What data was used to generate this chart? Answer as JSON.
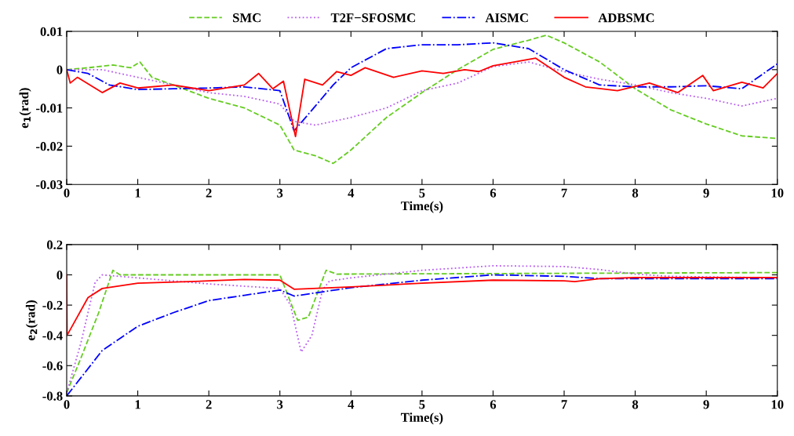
{
  "chart_data": [
    {
      "type": "line",
      "xlabel": "Time(s)",
      "ylabel": "e$_{1}$(rad)",
      "xlim": [
        0,
        10
      ],
      "ylim": [
        -0.03,
        0.01
      ],
      "xticks": [
        0,
        1,
        2,
        3,
        4,
        5,
        6,
        7,
        8,
        9,
        10
      ],
      "yticks": [
        -0.03,
        -0.02,
        -0.01,
        0,
        0.01
      ],
      "grid": false,
      "legend": "top",
      "marker": "none",
      "series": [
        {
          "name": "SMC",
          "color": "#66cc22",
          "line_style": "dashed",
          "x": [
            0,
            0.3,
            0.65,
            0.9,
            1.03,
            1.2,
            1.5,
            2,
            2.5,
            3,
            3.2,
            3.5,
            3.75,
            4,
            4.5,
            5,
            5.5,
            6,
            6.5,
            6.75,
            7,
            7.5,
            8,
            8.5,
            9,
            9.5,
            10
          ],
          "values": [
            0,
            0.0005,
            0.0012,
            0.0005,
            0.002,
            -0.002,
            -0.004,
            -0.0075,
            -0.01,
            -0.0145,
            -0.021,
            -0.0225,
            -0.0245,
            -0.021,
            -0.0125,
            -0.006,
            0,
            0.0053,
            0.0077,
            0.009,
            0.007,
            0.002,
            -0.005,
            -0.0105,
            -0.0142,
            -0.0173,
            -0.018
          ]
        },
        {
          "name": "T2F−SFOSMC",
          "color": "#b85cf0",
          "line_style": "dotted",
          "x": [
            0,
            0.5,
            1,
            1.5,
            2,
            2.5,
            3,
            3.2,
            3.5,
            4,
            4.5,
            5,
            5.5,
            6,
            6.5,
            7,
            7.5,
            8,
            8.5,
            9,
            9.5,
            10
          ],
          "values": [
            0,
            0,
            -0.002,
            -0.004,
            -0.006,
            -0.007,
            -0.009,
            -0.0135,
            -0.0145,
            -0.0125,
            -0.01,
            -0.0055,
            -0.0035,
            0.0008,
            0.002,
            -0.0005,
            -0.0025,
            -0.004,
            -0.006,
            -0.0075,
            -0.0095,
            -0.0075
          ]
        },
        {
          "name": "AISMC",
          "color": "#0000ff",
          "line_style": "dashdot",
          "x": [
            0,
            0.3,
            0.6,
            1,
            1.5,
            2,
            2.5,
            3,
            3.2,
            3.5,
            3.75,
            4,
            4.5,
            5,
            5.5,
            6,
            6.5,
            7,
            7.5,
            8,
            8.5,
            9,
            9.5,
            10
          ],
          "values": [
            0,
            -0.001,
            -0.004,
            -0.0052,
            -0.005,
            -0.0048,
            -0.0045,
            -0.0055,
            -0.016,
            -0.0095,
            -0.004,
            0.0005,
            0.0055,
            0.0065,
            0.0065,
            0.007,
            0.0055,
            0,
            -0.004,
            -0.0045,
            -0.0045,
            -0.0042,
            -0.005,
            0.0015
          ]
        },
        {
          "name": "ADBSMC",
          "color": "#ff0000",
          "line_style": "solid",
          "x": [
            0,
            0.05,
            0.15,
            0.5,
            0.75,
            1,
            1.5,
            2,
            2.5,
            2.7,
            2.9,
            3.05,
            3.22,
            3.35,
            3.6,
            3.8,
            4,
            4.2,
            4.6,
            5,
            5.3,
            5.6,
            5.8,
            6,
            6.6,
            7,
            7.3,
            7.75,
            8.2,
            8.6,
            8.95,
            9.1,
            9.5,
            9.8,
            10
          ],
          "values": [
            0,
            -0.0035,
            -0.002,
            -0.006,
            -0.0035,
            -0.0048,
            -0.004,
            -0.0055,
            -0.004,
            -0.001,
            -0.005,
            -0.003,
            -0.0175,
            -0.0025,
            -0.004,
            -0.0005,
            -0.0015,
            0.0005,
            -0.002,
            -0.0003,
            -0.001,
            0,
            -0.0005,
            0.001,
            0.003,
            -0.002,
            -0.0045,
            -0.0055,
            -0.0035,
            -0.006,
            -0.0015,
            -0.0055,
            -0.0033,
            -0.0048,
            -0.001
          ]
        }
      ]
    },
    {
      "type": "line",
      "xlabel": "Time(s)",
      "ylabel": "e$_{2}$(rad)",
      "xlim": [
        0,
        10
      ],
      "ylim": [
        -0.8,
        0.2
      ],
      "xticks": [
        0,
        1,
        2,
        3,
        4,
        5,
        6,
        7,
        8,
        9,
        10
      ],
      "yticks": [
        -0.8,
        -0.6,
        -0.4,
        -0.2,
        0,
        0.2
      ],
      "grid": false,
      "legend": false,
      "marker": "none",
      "series": [
        {
          "color": "#66cc22",
          "line_style": "dashed",
          "x": [
            0,
            0.2,
            0.45,
            0.65,
            0.75,
            3,
            3.25,
            3.4,
            3.65,
            3.8,
            10
          ],
          "values": [
            -0.78,
            -0.55,
            -0.25,
            0.03,
            0,
            0,
            -0.3,
            -0.28,
            0.03,
            0.005,
            0.015
          ]
        },
        {
          "color": "#b85cf0",
          "line_style": "dotted",
          "x": [
            0,
            0.2,
            0.4,
            0.5,
            1,
            2,
            3,
            3.15,
            3.3,
            3.45,
            3.6,
            3.7,
            4,
            5,
            6,
            7,
            7.5,
            8,
            8.5,
            10
          ],
          "values": [
            -0.78,
            -0.45,
            -0.05,
            0,
            -0.02,
            -0.06,
            -0.09,
            -0.2,
            -0.51,
            -0.4,
            -0.1,
            -0.04,
            -0.02,
            0.03,
            0.06,
            0.055,
            0.035,
            0.005,
            -0.01,
            -0.02
          ]
        },
        {
          "color": "#0000ff",
          "line_style": "dashdot",
          "x": [
            0,
            0.5,
            1,
            1.5,
            2,
            2.5,
            3,
            3.2,
            4,
            5,
            6,
            7,
            7.5,
            8,
            10
          ],
          "values": [
            -0.8,
            -0.5,
            -0.34,
            -0.25,
            -0.17,
            -0.135,
            -0.1,
            -0.14,
            -0.085,
            -0.035,
            0,
            -0.01,
            -0.025,
            -0.025,
            -0.025
          ]
        },
        {
          "color": "#ff0000",
          "line_style": "solid",
          "x": [
            0,
            0.005,
            0.3,
            0.5,
            1,
            2,
            2.5,
            3,
            3.2,
            4,
            5,
            6,
            7,
            7.15,
            7.5,
            8,
            10
          ],
          "values": [
            0,
            -0.4,
            -0.15,
            -0.09,
            -0.055,
            -0.04,
            -0.03,
            -0.035,
            -0.095,
            -0.08,
            -0.055,
            -0.035,
            -0.04,
            -0.045,
            -0.025,
            -0.018,
            -0.018
          ]
        }
      ]
    }
  ]
}
